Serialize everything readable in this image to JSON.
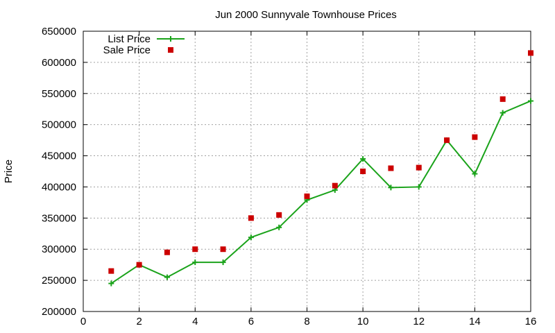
{
  "chart_data": {
    "type": "line",
    "title": "Jun 2000 Sunnyvale Townhouse Prices",
    "xlabel": "",
    "ylabel": "Price",
    "xlim": [
      0,
      16
    ],
    "ylim": [
      200000,
      650000
    ],
    "xticks": [
      0,
      2,
      4,
      6,
      8,
      10,
      12,
      14,
      16
    ],
    "yticks": [
      200000,
      250000,
      300000,
      350000,
      400000,
      450000,
      500000,
      550000,
      600000,
      650000
    ],
    "grid": true,
    "legend_position": "top-left",
    "x": [
      1,
      2,
      3,
      4,
      5,
      6,
      7,
      8,
      9,
      10,
      11,
      12,
      13,
      14,
      15,
      16
    ],
    "series": [
      {
        "name": "List Price",
        "style": "line-points",
        "color": "#1aa31a",
        "values": [
          245000,
          275000,
          255000,
          279000,
          279000,
          319000,
          335000,
          379000,
          395000,
          445000,
          399000,
          400000,
          475000,
          421000,
          519000,
          538000
        ]
      },
      {
        "name": "Sale Price",
        "style": "points",
        "color": "#cc0000",
        "values": [
          265000,
          275000,
          295000,
          300000,
          300000,
          350000,
          355000,
          385000,
          402000,
          425000,
          430000,
          431000,
          475000,
          480000,
          541000,
          615000
        ]
      }
    ]
  }
}
